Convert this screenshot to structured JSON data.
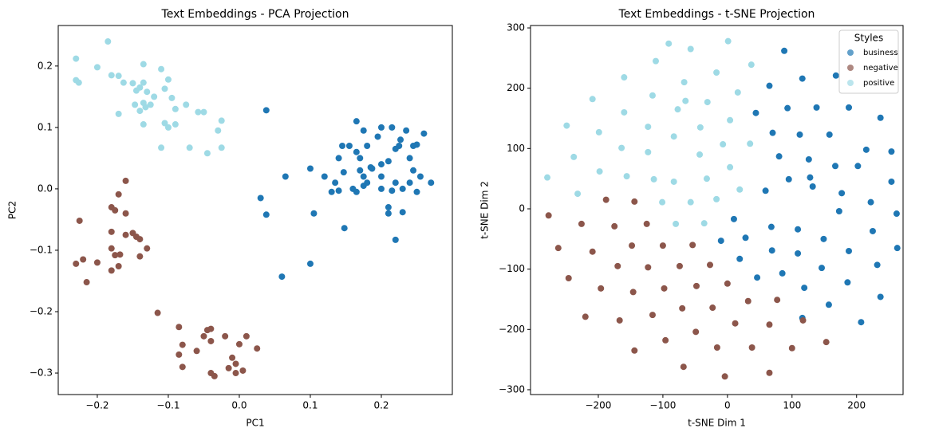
{
  "chart_data": [
    {
      "type": "scatter",
      "title": "Text Embeddings - PCA Projection",
      "x_label": "PC1",
      "y_label": "PC2",
      "xlim": [
        -0.255,
        0.3
      ],
      "ylim": [
        -0.335,
        0.266
      ],
      "xticks": [
        {
          "value": -0.2,
          "label": "−0.2"
        },
        {
          "value": -0.1,
          "label": "−0.1"
        },
        {
          "value": 0,
          "label": "0.0"
        },
        0.1,
        0.2
      ],
      "yticks": [
        {
          "value": -0.3,
          "label": "−0.3"
        },
        {
          "value": -0.2,
          "label": "−0.2"
        },
        {
          "value": -0.1,
          "label": "−0.1"
        },
        {
          "value": 0,
          "label": "0.0"
        },
        0.1,
        0.2
      ],
      "series": [
        {
          "color": "#1f77b4",
          "x": [
            0.038,
            0.065,
            0.03,
            0.038,
            0.1,
            0.105,
            0.06,
            0.1,
            0.148,
            0.21,
            0.22,
            0.23,
            0.21,
            0.165,
            0.175,
            0.145,
            0.155,
            0.2,
            0.215,
            0.235,
            0.195,
            0.18,
            0.225,
            0.227,
            0.26,
            0.25,
            0.245,
            0.165,
            0.22,
            0.14,
            0.17,
            0.24,
            0.2,
            0.185,
            0.187,
            0.21,
            0.17,
            0.245,
            0.147,
            0.175,
            0.12,
            0.135,
            0.18,
            0.2,
            0.22,
            0.24,
            0.255,
            0.27,
            0.16,
            0.2,
            0.13,
            0.14,
            0.165,
            0.175,
            0.215,
            0.25,
            0.23
          ],
          "values": [
            0.128,
            0.02,
            -0.015,
            -0.042,
            0.033,
            -0.04,
            -0.143,
            -0.122,
            -0.064,
            -0.04,
            -0.083,
            -0.038,
            -0.03,
            0.11,
            0.095,
            0.07,
            0.07,
            0.1,
            0.1,
            0.095,
            0.085,
            0.07,
            0.07,
            0.08,
            0.09,
            0.072,
            0.07,
            0.06,
            0.065,
            0.05,
            0.05,
            0.05,
            0.04,
            0.035,
            0.033,
            0.045,
            0.03,
            0.03,
            0.027,
            0.02,
            0.02,
            0.01,
            0.01,
            0.02,
            0.01,
            0.01,
            0.02,
            0.01,
            0.0,
            0.0,
            -0.005,
            -0.003,
            -0.005,
            0.005,
            -0.003,
            -0.005,
            0.0
          ]
        },
        {
          "color": "#8c564b",
          "x": [
            -0.16,
            -0.17,
            -0.18,
            -0.175,
            -0.16,
            -0.225,
            -0.18,
            -0.15,
            -0.16,
            -0.145,
            -0.14,
            -0.13,
            -0.18,
            -0.175,
            -0.168,
            -0.14,
            -0.22,
            -0.2,
            -0.23,
            -0.17,
            -0.18,
            -0.215,
            -0.115,
            -0.085,
            -0.045,
            -0.04,
            -0.05,
            -0.02,
            -0.08,
            -0.04,
            0.0,
            0.01,
            0.025,
            -0.085,
            -0.06,
            -0.01,
            -0.005,
            -0.015,
            -0.08,
            -0.04,
            -0.035,
            -0.005,
            0.005
          ],
          "values": [
            0.013,
            -0.009,
            -0.03,
            -0.035,
            -0.04,
            -0.052,
            -0.07,
            -0.072,
            -0.075,
            -0.078,
            -0.082,
            -0.097,
            -0.097,
            -0.108,
            -0.107,
            -0.11,
            -0.115,
            -0.12,
            -0.122,
            -0.126,
            -0.133,
            -0.152,
            -0.202,
            -0.225,
            -0.23,
            -0.228,
            -0.24,
            -0.24,
            -0.254,
            -0.248,
            -0.253,
            -0.24,
            -0.26,
            -0.27,
            -0.264,
            -0.275,
            -0.285,
            -0.292,
            -0.29,
            -0.3,
            -0.305,
            -0.3,
            -0.296
          ]
        },
        {
          "color": "#9edae5",
          "x": [
            -0.23,
            -0.23,
            -0.226,
            -0.185,
            -0.2,
            -0.18,
            -0.17,
            -0.163,
            -0.15,
            -0.135,
            -0.135,
            -0.145,
            -0.14,
            -0.13,
            -0.147,
            -0.135,
            -0.125,
            -0.14,
            -0.132,
            -0.17,
            -0.135,
            -0.11,
            -0.1,
            -0.105,
            -0.095,
            -0.09,
            -0.075,
            -0.105,
            -0.1,
            -0.09,
            -0.11,
            -0.058,
            -0.05,
            -0.03,
            -0.025,
            -0.07,
            -0.045,
            -0.025,
            -0.12
          ],
          "values": [
            0.212,
            0.177,
            0.173,
            0.24,
            0.198,
            0.185,
            0.184,
            0.173,
            0.172,
            0.203,
            0.173,
            0.16,
            0.165,
            0.158,
            0.137,
            0.14,
            0.137,
            0.127,
            0.133,
            0.122,
            0.105,
            0.195,
            0.178,
            0.163,
            0.148,
            0.13,
            0.137,
            0.107,
            0.1,
            0.105,
            0.067,
            0.125,
            0.125,
            0.095,
            0.111,
            0.067,
            0.058,
            0.067,
            0.15
          ]
        }
      ]
    },
    {
      "type": "scatter",
      "title": "Text Embeddings - t-SNE Projection",
      "x_label": "t-SNE Dim 1",
      "y_label": "t-SNE Dim 2",
      "xlim": [
        -305,
        272
      ],
      "ylim": [
        -308,
        304
      ],
      "xticks": [
        {
          "value": -200,
          "label": "−200"
        },
        {
          "value": -100,
          "label": "−100"
        },
        0,
        100,
        200
      ],
      "yticks": [
        {
          "value": -300,
          "label": "−300"
        },
        {
          "value": -200,
          "label": "−200"
        },
        {
          "value": -100,
          "label": "−100"
        },
        0,
        100,
        200,
        300
      ],
      "legend": "upper right",
      "legend_title": "Styles",
      "series": [
        {
          "name": "business",
          "color": "#1f77b4",
          "x": [
            88,
            116,
            168,
            138,
            188,
            237,
            65,
            93,
            44,
            70,
            112,
            158,
            215,
            254,
            202,
            167,
            126,
            80,
            95,
            132,
            177,
            222,
            262,
            263,
            225,
            232,
            237,
            207,
            186,
            188,
            173,
            149,
            146,
            157,
            119,
            109,
            116,
            85,
            109,
            69,
            59,
            68,
            28,
            10,
            -10,
            19,
            46,
            128,
            254
          ],
          "values": [
            262,
            216,
            221,
            168,
            168,
            151,
            204,
            167,
            159,
            126,
            123,
            123,
            98,
            45,
            71,
            71,
            82,
            87,
            49,
            37,
            26,
            11,
            -8,
            -65,
            -37,
            -93,
            -146,
            -188,
            -122,
            -70,
            -4,
            -50,
            -98,
            -159,
            -131,
            -74,
            -181,
            -107,
            -34,
            -69,
            30,
            -30,
            -48,
            -17,
            -53,
            -83,
            -114,
            52,
            95
          ]
        },
        {
          "name": "negative",
          "color": "#8c564b",
          "x": [
            -277,
            -262,
            -188,
            -144,
            -226,
            -175,
            -125,
            -246,
            -209,
            -148,
            -100,
            -54,
            -170,
            -123,
            -74,
            -27,
            -196,
            -146,
            -98,
            -48,
            0,
            -70,
            -23,
            32,
            77,
            -220,
            -167,
            -116,
            -49,
            12,
            65,
            117,
            -96,
            -144,
            -16,
            38,
            100,
            153,
            -68,
            -4,
            65
          ],
          "values": [
            -11,
            -65,
            15,
            12,
            -25,
            -29,
            -25,
            -115,
            -71,
            -61,
            -61,
            -60,
            -95,
            -97,
            -95,
            -93,
            -132,
            -138,
            -132,
            -128,
            -124,
            -165,
            -164,
            -153,
            -151,
            -179,
            -185,
            -176,
            -204,
            -190,
            -192,
            -185,
            -218,
            -235,
            -230,
            -230,
            -231,
            -221,
            -262,
            -278,
            -272
          ]
        },
        {
          "name": "positive",
          "color": "#9edae5",
          "x": [
            -91,
            1,
            -57,
            37,
            -160,
            -111,
            -17,
            -67,
            16,
            -209,
            -116,
            -65,
            -31,
            -160,
            -77,
            4,
            -199,
            -123,
            -42,
            -249,
            -164,
            -83,
            -7,
            35,
            -238,
            -123,
            -43,
            -198,
            -156,
            -114,
            -83,
            -32,
            4,
            19,
            -279,
            -232,
            -101,
            -57,
            -17,
            -80,
            -36
          ],
          "values": [
            274,
            278,
            265,
            239,
            218,
            245,
            226,
            210,
            193,
            182,
            188,
            179,
            177,
            160,
            165,
            147,
            127,
            136,
            135,
            138,
            101,
            120,
            107,
            108,
            86,
            94,
            90,
            62,
            54,
            49,
            45,
            50,
            69,
            32,
            52,
            25,
            11,
            11,
            16,
            -25,
            -24
          ]
        }
      ]
    }
  ]
}
